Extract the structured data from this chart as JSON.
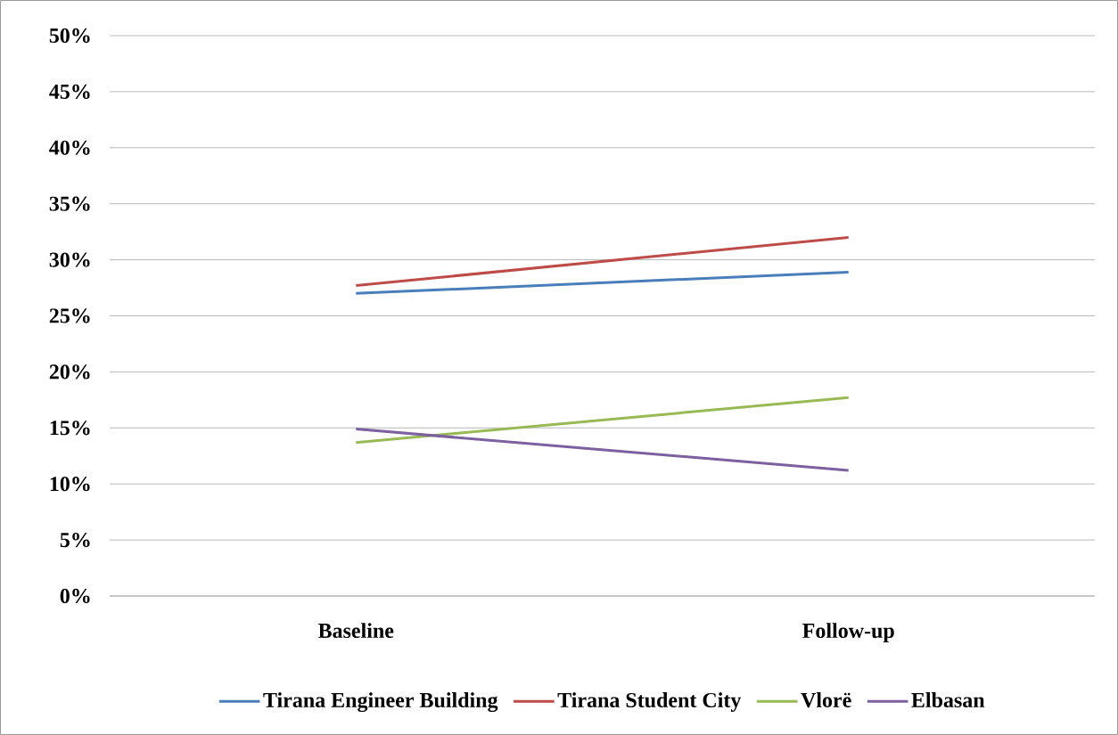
{
  "chart_data": {
    "type": "line",
    "categories": [
      "Baseline",
      "Follow-up"
    ],
    "series": [
      {
        "name": "Tirana Engineer Building",
        "color": "#4a7ebb",
        "values": [
          27.0,
          28.9
        ]
      },
      {
        "name": "Tirana Student City",
        "color": "#be4b48",
        "values": [
          27.7,
          32.0
        ]
      },
      {
        "name": "Vlorë",
        "color": "#98b954",
        "values": [
          13.7,
          17.7
        ]
      },
      {
        "name": "Elbasan",
        "color": "#7d60a0",
        "values": [
          14.9,
          11.2
        ]
      }
    ],
    "ylim": [
      0,
      50
    ],
    "yticks": [
      {
        "value": 0,
        "label": "0%"
      },
      {
        "value": 5,
        "label": "5%"
      },
      {
        "value": 10,
        "label": "10%"
      },
      {
        "value": 15,
        "label": "15%"
      },
      {
        "value": 20,
        "label": "20%"
      },
      {
        "value": 25,
        "label": "25%"
      },
      {
        "value": 30,
        "label": "30%"
      },
      {
        "value": 35,
        "label": "35%"
      },
      {
        "value": 40,
        "label": "40%"
      },
      {
        "value": 45,
        "label": "45%"
      },
      {
        "value": 50,
        "label": "50%"
      }
    ],
    "grid": "y",
    "legend": "bottom",
    "marker": "none",
    "line_style": "solid"
  }
}
